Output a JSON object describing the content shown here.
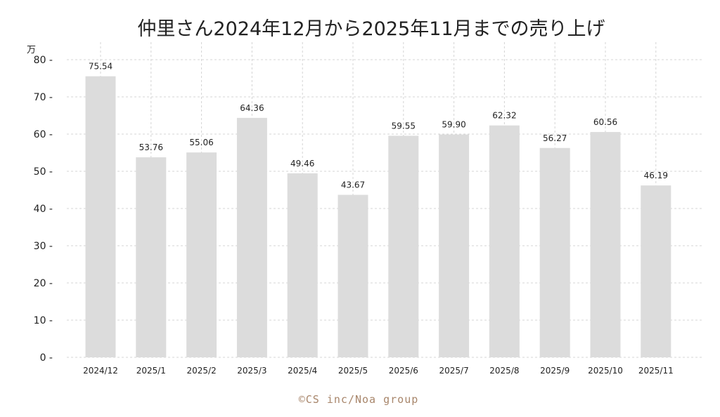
{
  "chart_data": {
    "type": "bar",
    "title": "仲里さん2024年12月から2025年11月までの売り上げ",
    "y_unit": "万",
    "xlabel": "",
    "ylabel": "",
    "categories": [
      "2024/12",
      "2025/1",
      "2025/2",
      "2025/3",
      "2025/4",
      "2025/5",
      "2025/6",
      "2025/7",
      "2025/8",
      "2025/9",
      "2025/10",
      "2025/11"
    ],
    "values": [
      75.54,
      53.76,
      55.06,
      64.36,
      49.46,
      43.67,
      59.55,
      59.9,
      62.32,
      56.27,
      60.56,
      46.19
    ],
    "value_labels": [
      "75.54",
      "53.76",
      "55.06",
      "64.36",
      "49.46",
      "43.67",
      "59.55",
      "59.90",
      "62.32",
      "56.27",
      "60.56",
      "46.19"
    ],
    "y_ticks": [
      "0",
      "10",
      "20",
      "30",
      "40",
      "50",
      "60",
      "70",
      "80"
    ],
    "ylim": [
      0,
      80
    ],
    "grid": true,
    "bar_color": "#dcdcdc"
  },
  "footer": "©CS inc/Noa group"
}
